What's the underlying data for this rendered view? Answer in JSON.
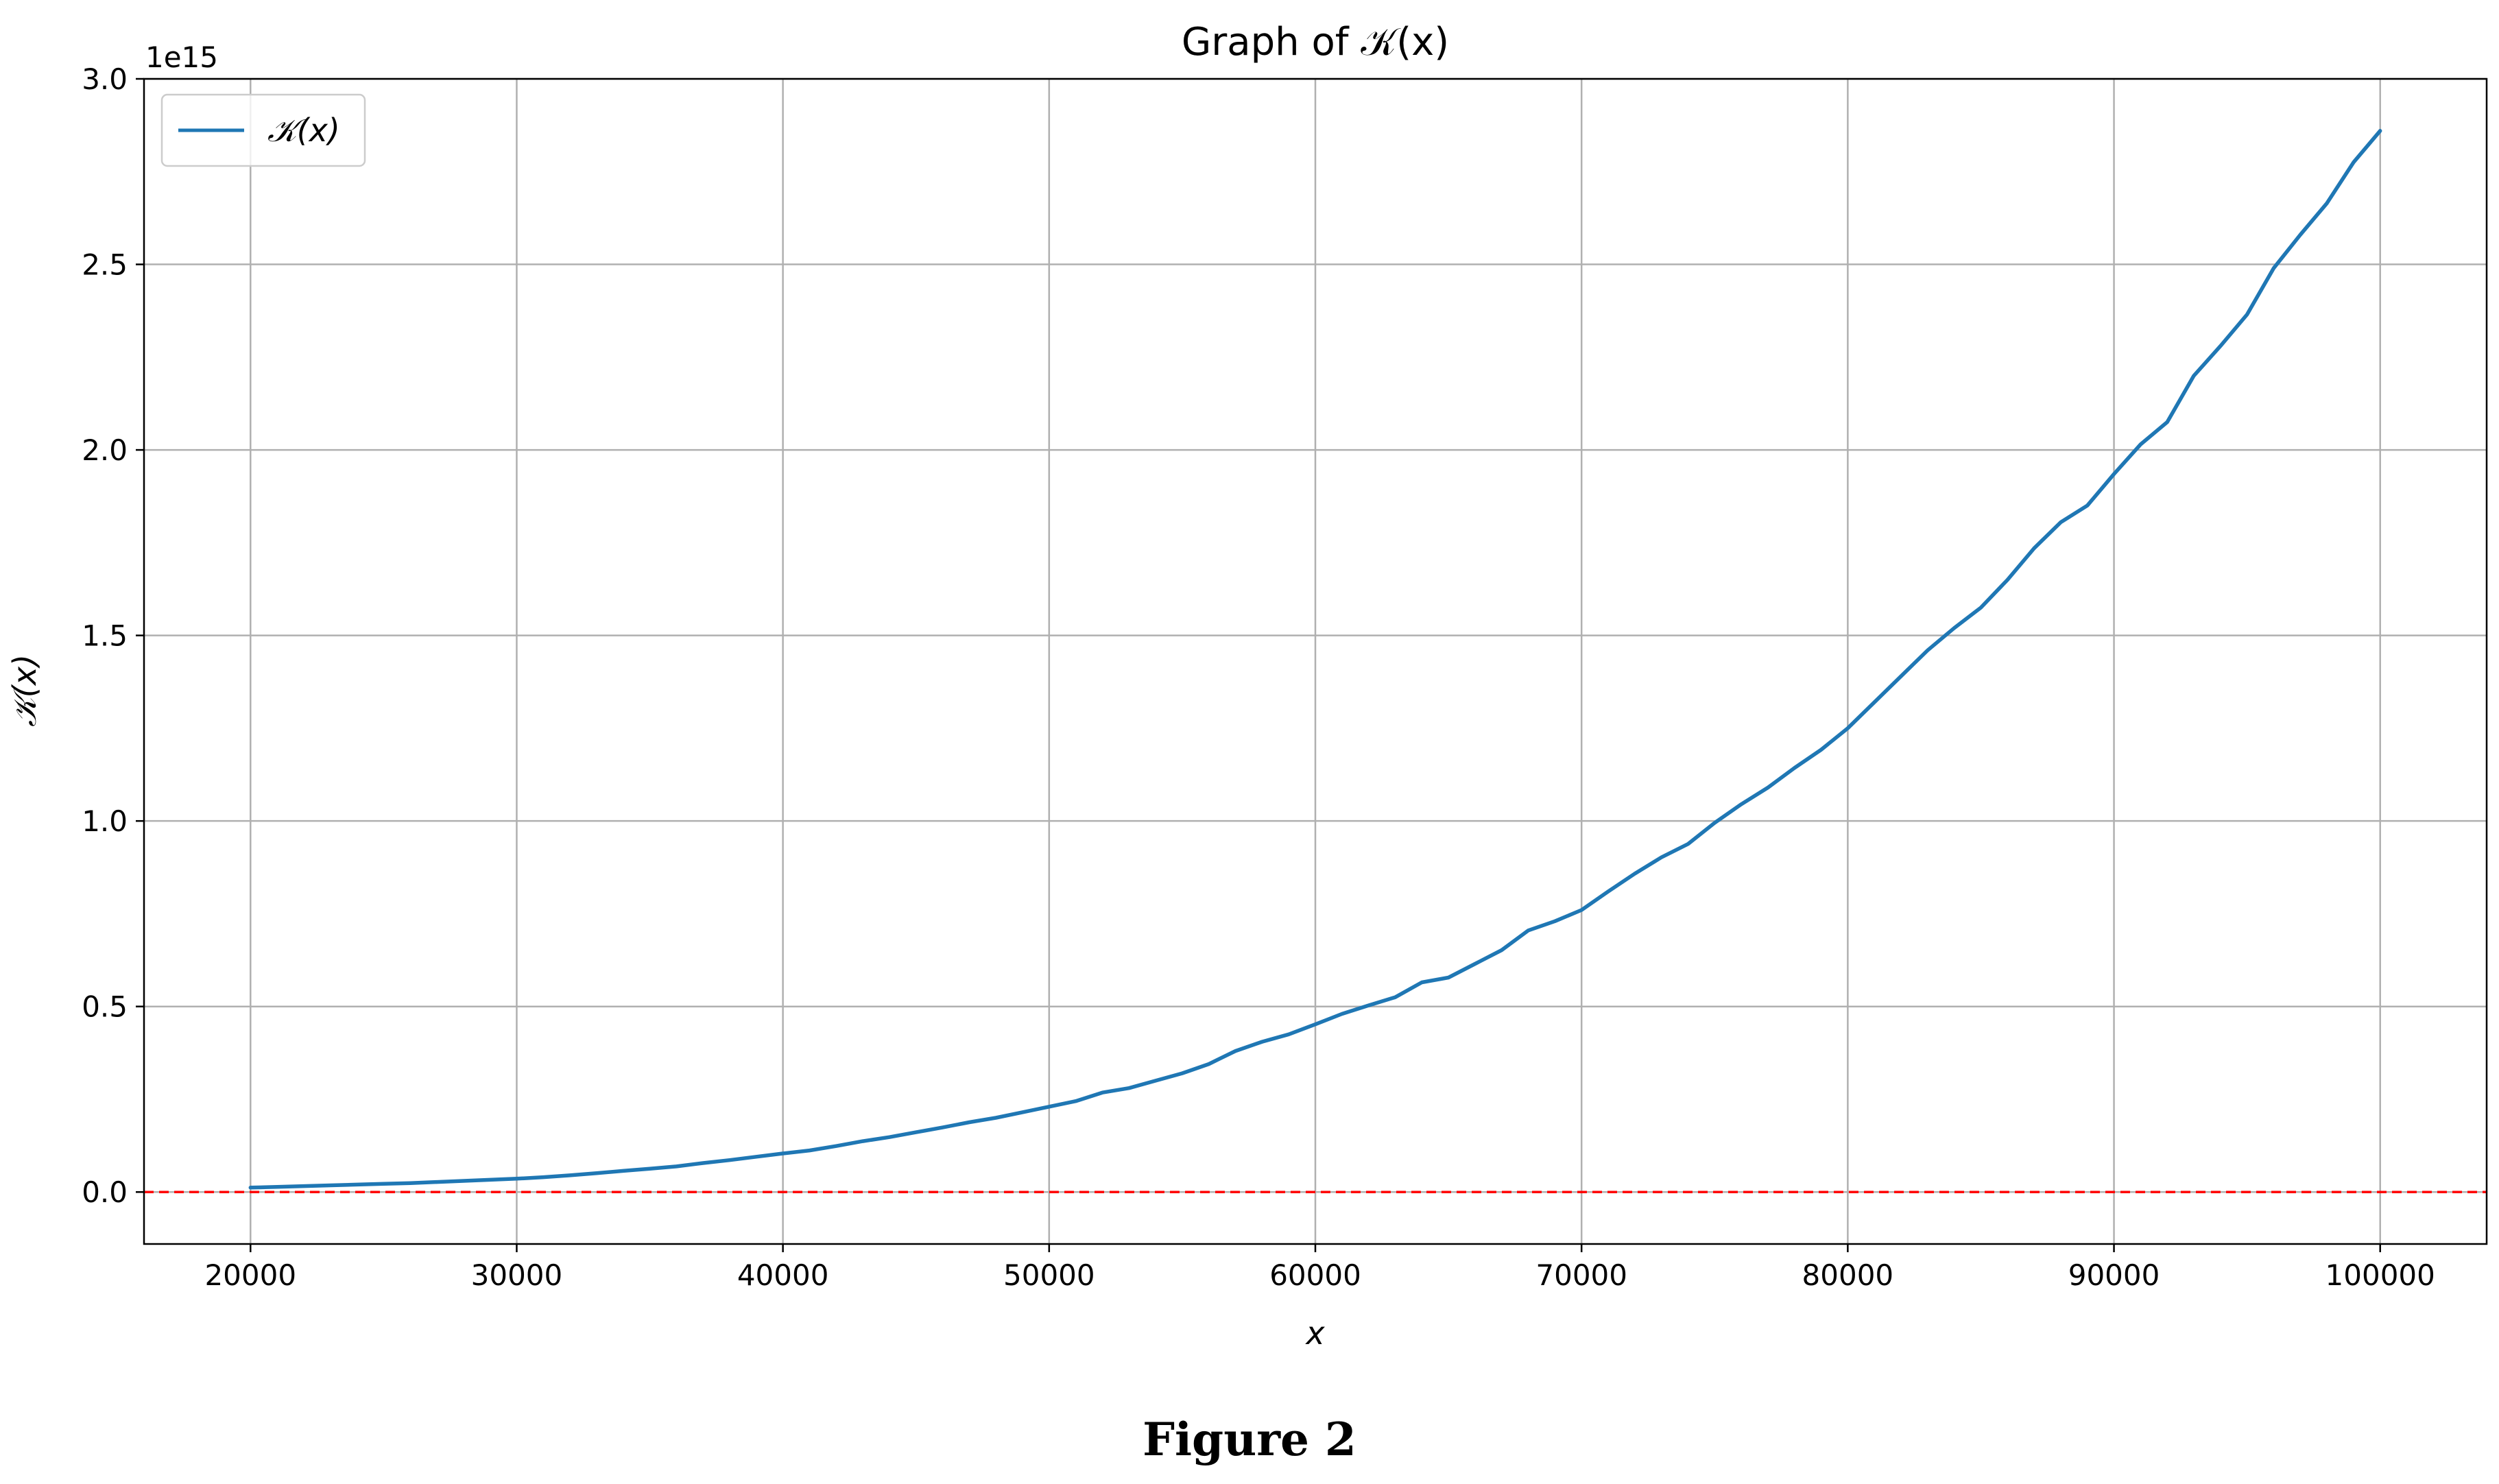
{
  "caption": "Figure 2",
  "chart_data": {
    "type": "line",
    "title": "Graph of 𝒦(x)",
    "xlabel": "x",
    "ylabel": "𝒦(x)",
    "y_offset_label": "1e15",
    "xlim": [
      16000,
      104000
    ],
    "ylim": [
      -0.14,
      3.0
    ],
    "y_units": "×1e15",
    "xticks": [
      20000,
      30000,
      40000,
      50000,
      60000,
      70000,
      80000,
      90000,
      100000
    ],
    "yticks": [
      0.0,
      0.5,
      1.0,
      1.5,
      2.0,
      2.5,
      3.0
    ],
    "ytick_labels": [
      "0.0",
      "0.5",
      "1.0",
      "1.5",
      "2.0",
      "2.5",
      "3.0"
    ],
    "grid": true,
    "legend": {
      "position": "top-left",
      "entries": [
        "𝒦(x)"
      ]
    },
    "colors": {
      "series": "#1f77b4",
      "reference_line": "#ff0000",
      "grid": "#b0b0b0"
    },
    "reference_line": {
      "y": 0,
      "style": "dashed",
      "color": "#ff0000"
    },
    "series": [
      {
        "name": "𝒦(x)",
        "x": [
          20000,
          21000,
          22000,
          23000,
          24000,
          25000,
          26000,
          27000,
          28000,
          29000,
          30000,
          31000,
          32000,
          33000,
          34000,
          35000,
          36000,
          37000,
          38000,
          39000,
          40000,
          41000,
          42000,
          43000,
          44000,
          45000,
          46000,
          47000,
          48000,
          49000,
          50000,
          51000,
          52000,
          53000,
          54000,
          55000,
          56000,
          57000,
          58000,
          59000,
          60000,
          61000,
          62000,
          63000,
          64000,
          65000,
          66000,
          67000,
          68000,
          69000,
          70000,
          71000,
          72000,
          73000,
          74000,
          75000,
          76000,
          77000,
          78000,
          79000,
          80000,
          81000,
          82000,
          83000,
          84000,
          85000,
          86000,
          87000,
          88000,
          89000,
          90000,
          91000,
          92000,
          93000,
          94000,
          95000,
          96000,
          97000,
          98000,
          99000,
          100000
        ],
        "y": [
          0.012,
          0.014,
          0.016,
          0.018,
          0.02,
          0.022,
          0.024,
          0.027,
          0.03,
          0.033,
          0.036,
          0.04,
          0.045,
          0.051,
          0.057,
          0.063,
          0.069,
          0.078,
          0.086,
          0.095,
          0.104,
          0.112,
          0.124,
          0.137,
          0.148,
          0.161,
          0.174,
          0.188,
          0.2,
          0.215,
          0.23,
          0.245,
          0.268,
          0.28,
          0.3,
          0.32,
          0.345,
          0.38,
          0.405,
          0.425,
          0.452,
          0.48,
          0.503,
          0.525,
          0.565,
          0.578,
          0.615,
          0.652,
          0.705,
          0.73,
          0.76,
          0.81,
          0.858,
          0.902,
          0.938,
          0.995,
          1.045,
          1.09,
          1.143,
          1.192,
          1.25,
          1.32,
          1.39,
          1.46,
          1.52,
          1.575,
          1.65,
          1.735,
          1.805,
          1.85,
          1.935,
          2.015,
          2.075,
          2.2,
          2.28,
          2.365,
          2.49,
          2.58,
          2.665,
          2.775,
          2.86
        ]
      }
    ]
  }
}
